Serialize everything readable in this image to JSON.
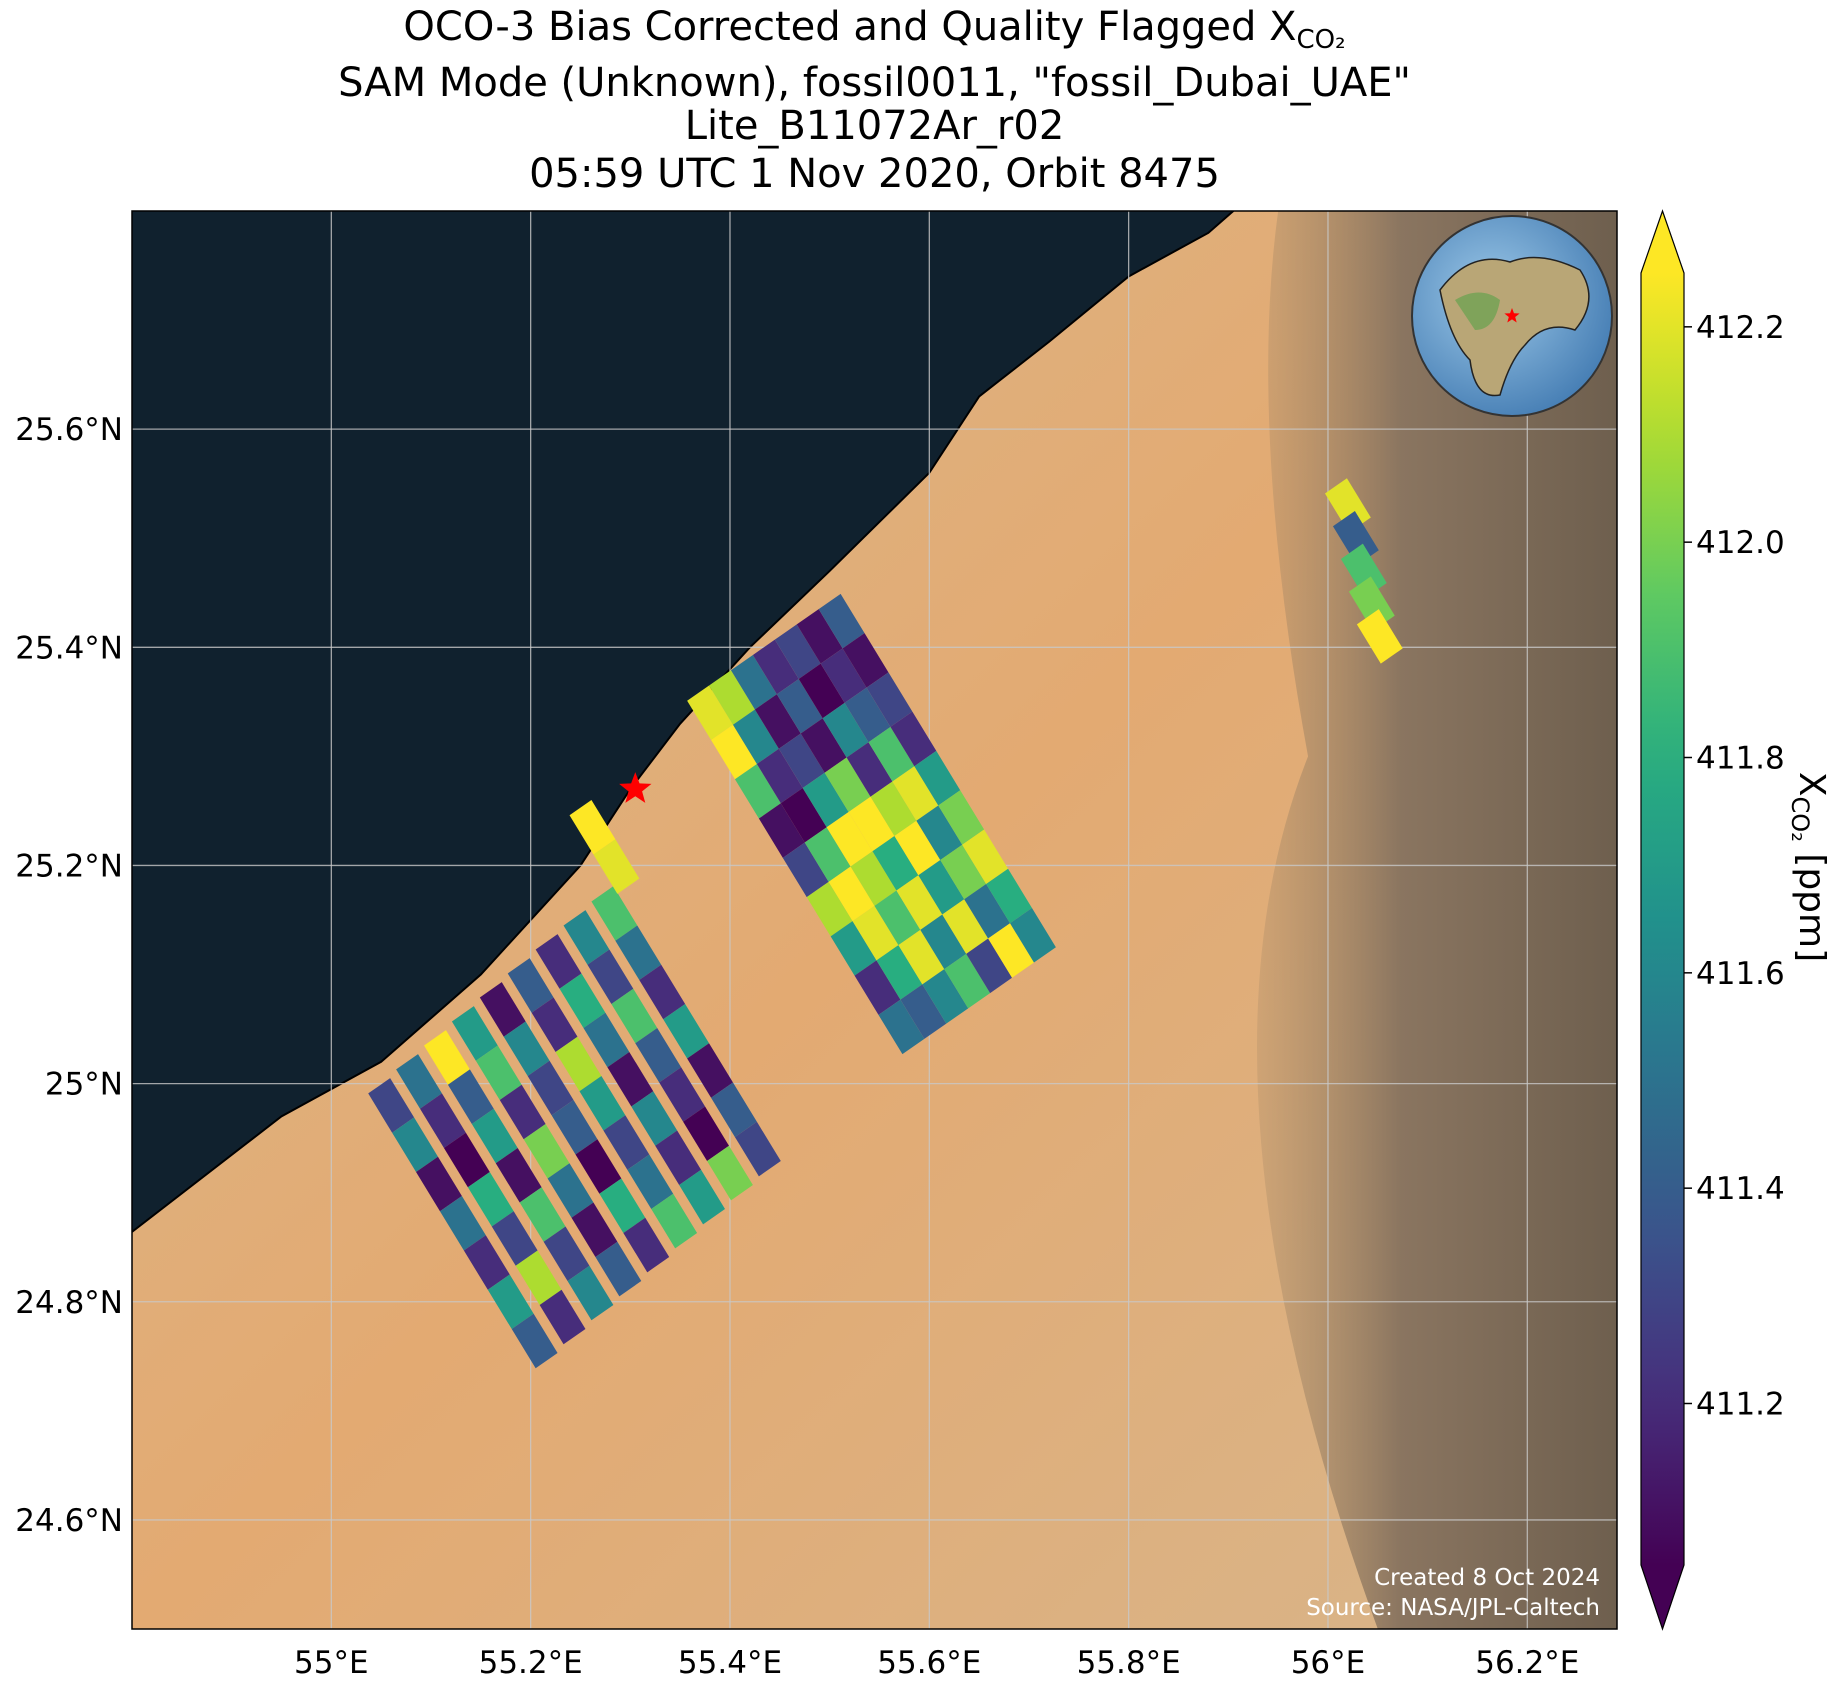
{
  "chart_data": {
    "type": "map",
    "title": [
      "OCO-3 Bias Corrected and Quality Flagged X",
      "SAM Mode (Unknown), fossil0011, \"fossil_Dubai_UAE\"",
      "Lite_B11072Ar_r02",
      "05:59 UTC 1 Nov 2020, Orbit 8475"
    ],
    "title_subscript": "CO₂",
    "xlim": [
      54.8,
      56.29
    ],
    "ylim": [
      24.5,
      25.8
    ],
    "xticks": [
      {
        "value": 55,
        "label": "55°E"
      },
      {
        "value": 55.2,
        "label": "55.2°E"
      },
      {
        "value": 55.4,
        "label": "55.4°E"
      },
      {
        "value": 55.6,
        "label": "55.6°E"
      },
      {
        "value": 55.8,
        "label": "55.8°E"
      },
      {
        "value": 56,
        "label": "56°E"
      },
      {
        "value": 56.2,
        "label": "56.2°E"
      }
    ],
    "yticks": [
      {
        "value": 24.6,
        "label": "24.6°N"
      },
      {
        "value": 24.8,
        "label": "24.8°N"
      },
      {
        "value": 25,
        "label": "25°N"
      },
      {
        "value": 25.2,
        "label": "25.2°N"
      },
      {
        "value": 25.4,
        "label": "25.4°N"
      },
      {
        "value": 25.6,
        "label": "25.6°N"
      }
    ],
    "grid": true,
    "colorbar": {
      "label": "X",
      "label_subscript": "CO₂",
      "label_suffix": " [ppm]",
      "lim": [
        411.05,
        412.25
      ],
      "ticks": [
        411.2,
        411.4,
        411.6,
        411.8,
        {
          "value": 412,
          "label": "412.0"
        },
        412.2
      ],
      "cmap": "viridis",
      "extend": "both"
    },
    "target": {
      "lon": 55.305,
      "lat": 25.27,
      "color": "red"
    },
    "annotations": [
      "Created 8 Oct 2024",
      "Source: NASA/JPL-Caltech"
    ],
    "swaths": [
      {
        "lon": [
          55.38,
          55.404,
          55.428,
          55.452,
          55.476,
          55.5,
          55.524,
          55.548,
          55.572
        ],
        "lat": [
          25.34,
          25.304,
          25.268,
          25.232,
          25.196,
          25.16,
          25.124,
          25.088,
          25.052
        ],
        "xco2": [
          412.2,
          412.25,
          411.9,
          411.1,
          411.3,
          412.1,
          411.7,
          411.2,
          411.5
        ]
      },
      {
        "lon": [
          55.402,
          55.426,
          55.45,
          55.474,
          55.498,
          55.522,
          55.546,
          55.57,
          55.594
        ],
        "lat": [
          25.354,
          25.318,
          25.282,
          25.246,
          25.21,
          25.174,
          25.138,
          25.102,
          25.066
        ],
        "xco2": [
          412.1,
          411.6,
          411.2,
          411.05,
          411.9,
          412.25,
          412.2,
          411.8,
          411.4
        ]
      },
      {
        "lon": [
          55.424,
          55.448,
          55.472,
          55.496,
          55.52,
          55.544,
          55.568,
          55.592,
          55.616
        ],
        "lat": [
          25.368,
          25.332,
          25.296,
          25.26,
          25.224,
          25.188,
          25.152,
          25.116,
          25.08
        ],
        "xco2": [
          411.5,
          411.1,
          411.3,
          411.7,
          412.25,
          412.1,
          411.9,
          412.2,
          411.6
        ]
      },
      {
        "lon": [
          55.446,
          55.47,
          55.494,
          55.518,
          55.542,
          55.566,
          55.59,
          55.614,
          55.638
        ],
        "lat": [
          25.382,
          25.346,
          25.31,
          25.274,
          25.238,
          25.202,
          25.166,
          25.13,
          25.094
        ],
        "xco2": [
          411.2,
          411.4,
          411.1,
          412.0,
          412.25,
          411.8,
          412.2,
          411.6,
          411.9
        ]
      },
      {
        "lon": [
          55.468,
          55.492,
          55.516,
          55.54,
          55.564,
          55.588,
          55.612,
          55.636,
          55.66
        ],
        "lat": [
          25.396,
          25.36,
          25.324,
          25.288,
          25.252,
          25.216,
          25.18,
          25.144,
          25.108
        ],
        "xco2": [
          411.3,
          411.05,
          411.6,
          411.2,
          412.1,
          412.25,
          411.7,
          412.2,
          411.3
        ]
      },
      {
        "lon": [
          55.49,
          55.514,
          55.538,
          55.562,
          55.586,
          55.61,
          55.634,
          55.658,
          55.682
        ],
        "lat": [
          25.41,
          25.374,
          25.338,
          25.302,
          25.266,
          25.23,
          25.194,
          25.158,
          25.122
        ],
        "xco2": [
          411.1,
          411.2,
          411.4,
          411.9,
          412.2,
          411.6,
          412.0,
          411.5,
          412.25
        ]
      },
      {
        "lon": [
          55.512,
          55.536,
          55.56,
          55.584,
          55.608,
          55.632,
          55.656,
          55.68,
          55.704
        ],
        "lat": [
          25.424,
          25.388,
          25.352,
          25.316,
          25.28,
          25.244,
          25.208,
          25.172,
          25.136
        ],
        "xco2": [
          411.4,
          411.1,
          411.3,
          411.2,
          411.7,
          412.0,
          412.2,
          411.8,
          411.6
        ]
      },
      {
        "lon": [
          55.06,
          55.084,
          55.108,
          55.132,
          55.156,
          55.18,
          55.204
        ],
        "lat": [
          24.98,
          24.944,
          24.908,
          24.872,
          24.836,
          24.8,
          24.764
        ],
        "xco2": [
          411.3,
          411.6,
          411.1,
          411.5,
          411.2,
          411.7,
          411.4
        ]
      },
      {
        "lon": [
          55.088,
          55.112,
          55.136,
          55.16,
          55.184,
          55.208,
          55.232
        ],
        "lat": [
          25.002,
          24.966,
          24.93,
          24.894,
          24.858,
          24.822,
          24.786
        ],
        "xco2": [
          411.5,
          411.2,
          411.05,
          411.8,
          411.3,
          412.1,
          411.2
        ]
      },
      {
        "lon": [
          55.116,
          55.14,
          55.164,
          55.188,
          55.212,
          55.236,
          55.26
        ],
        "lat": [
          25.024,
          24.988,
          24.952,
          24.916,
          24.88,
          24.844,
          24.808
        ],
        "xco2": [
          412.25,
          411.4,
          411.7,
          411.1,
          411.9,
          411.3,
          411.6
        ]
      },
      {
        "lon": [
          55.144,
          55.168,
          55.192,
          55.216,
          55.24,
          55.264,
          55.288
        ],
        "lat": [
          25.046,
          25.01,
          24.974,
          24.938,
          24.902,
          24.866,
          24.83
        ],
        "xco2": [
          411.7,
          411.9,
          411.2,
          412.0,
          411.5,
          411.1,
          411.4
        ]
      },
      {
        "lon": [
          55.172,
          55.196,
          55.22,
          55.244,
          55.268,
          55.292,
          55.316
        ],
        "lat": [
          25.068,
          25.032,
          24.996,
          24.96,
          24.924,
          24.888,
          24.852
        ],
        "xco2": [
          411.1,
          411.6,
          411.3,
          411.4,
          411.05,
          411.8,
          411.2
        ]
      },
      {
        "lon": [
          55.2,
          55.224,
          55.248,
          55.272,
          55.296,
          55.32,
          55.344
        ],
        "lat": [
          25.09,
          25.054,
          25.018,
          24.982,
          24.946,
          24.91,
          24.874
        ],
        "xco2": [
          411.4,
          411.2,
          412.1,
          411.7,
          411.3,
          411.5,
          411.9
        ]
      },
      {
        "lon": [
          55.228,
          55.252,
          55.276,
          55.3,
          55.324,
          55.348,
          55.372
        ],
        "lat": [
          25.112,
          25.076,
          25.04,
          25.004,
          24.968,
          24.932,
          24.896
        ],
        "xco2": [
          411.2,
          411.8,
          411.5,
          411.1,
          411.6,
          411.2,
          411.7
        ]
      },
      {
        "lon": [
          55.256,
          55.28,
          55.304,
          55.328,
          55.352,
          55.376,
          55.4
        ],
        "lat": [
          25.134,
          25.098,
          25.062,
          25.026,
          24.99,
          24.954,
          24.918
        ],
        "xco2": [
          411.6,
          411.3,
          411.9,
          411.4,
          411.2,
          411.05,
          412.0
        ]
      },
      {
        "lon": [
          55.284,
          55.308,
          55.332,
          55.356,
          55.38,
          55.404,
          55.428
        ],
        "lat": [
          25.156,
          25.12,
          25.084,
          25.048,
          25.012,
          24.976,
          24.94
        ],
        "xco2": [
          411.9,
          411.5,
          411.2,
          411.7,
          411.1,
          411.4,
          411.3
        ]
      },
      {
        "lon": [
          55.262,
          55.286
        ],
        "lat": [
          25.235,
          25.199
        ],
        "xco2": [
          412.25,
          412.2
        ]
      },
      {
        "lon": [
          56.02,
          56.028,
          56.036,
          56.044,
          56.052
        ],
        "lat": [
          25.53,
          25.5,
          25.47,
          25.44,
          25.41
        ],
        "xco2": [
          412.2,
          411.4,
          411.9,
          412.0,
          412.25
        ]
      }
    ]
  }
}
